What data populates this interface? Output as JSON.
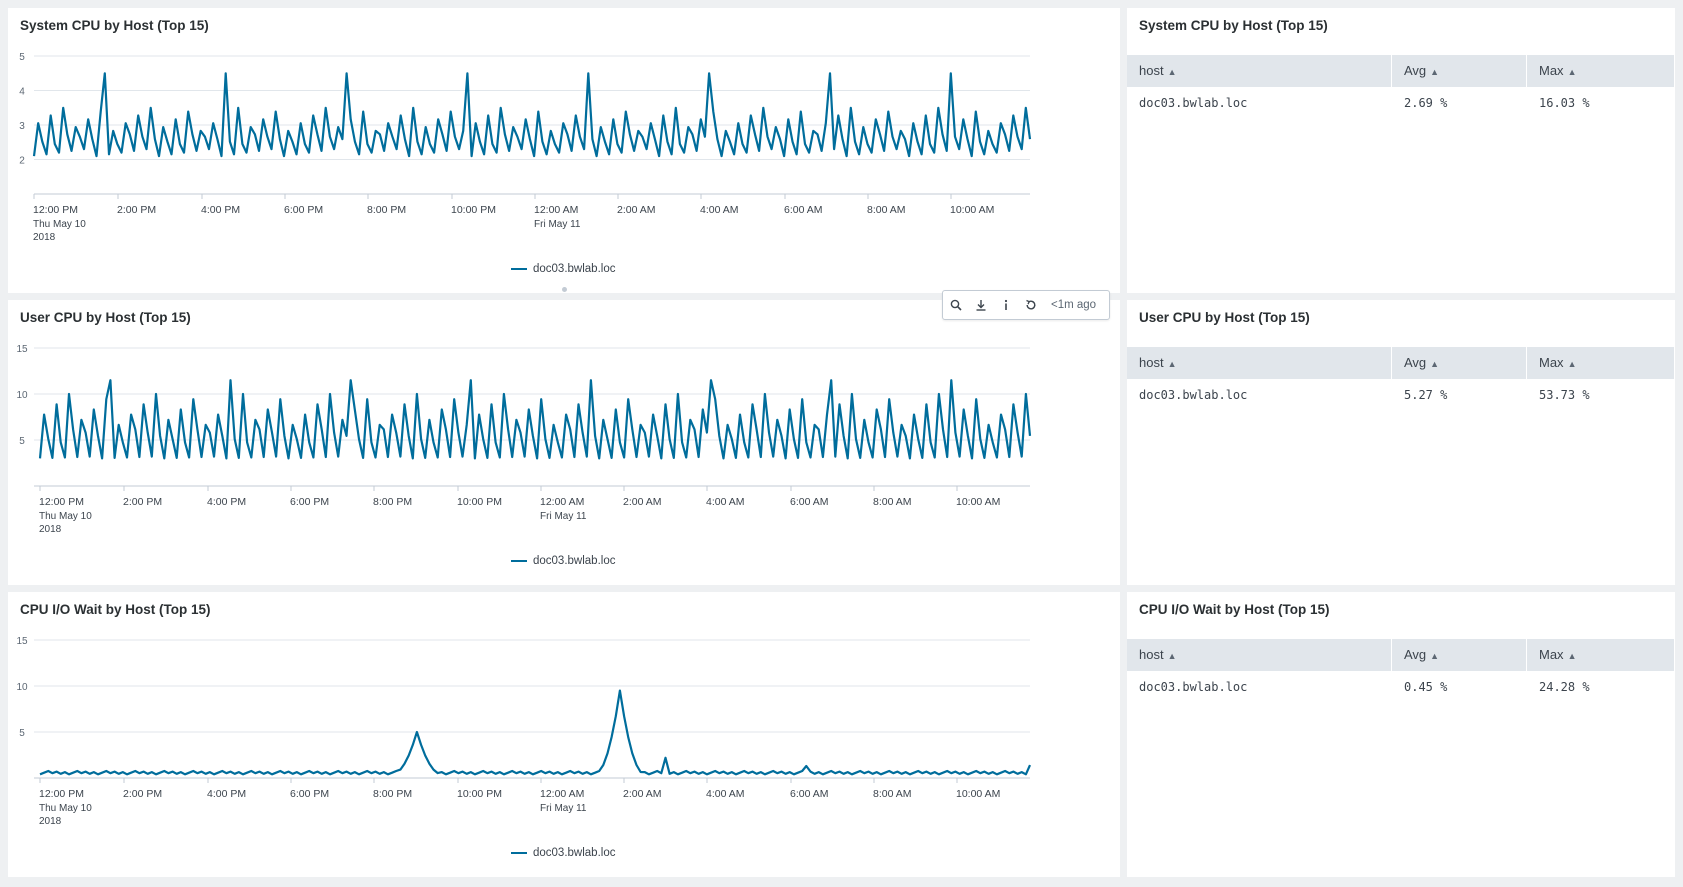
{
  "colors": {
    "series": "#006d9c",
    "grid": "#e1e6eb",
    "axis": "#c3cbd4",
    "table_header": "#e1e6eb"
  },
  "x_ticks": [
    {
      "label": "12:00 PM",
      "sub": [
        "Thu May 10",
        "2018"
      ]
    },
    {
      "label": "2:00 PM",
      "sub": []
    },
    {
      "label": "4:00 PM",
      "sub": []
    },
    {
      "label": "6:00 PM",
      "sub": []
    },
    {
      "label": "8:00 PM",
      "sub": []
    },
    {
      "label": "10:00 PM",
      "sub": []
    },
    {
      "label": "12:00 AM",
      "sub": [
        "Fri May 11"
      ]
    },
    {
      "label": "2:00 AM",
      "sub": []
    },
    {
      "label": "4:00 AM",
      "sub": []
    },
    {
      "label": "6:00 AM",
      "sub": []
    },
    {
      "label": "8:00 AM",
      "sub": []
    },
    {
      "label": "10:00 AM",
      "sub": []
    }
  ],
  "charts": [
    {
      "title": "System CPU by Host (Top 15)",
      "legend": "doc03.bwlab.loc",
      "chart_data": {
        "type": "line",
        "x": [
          "12:00 PM",
          "2:00 PM",
          "4:00 PM",
          "6:00 PM",
          "8:00 PM",
          "10:00 PM",
          "12:00 AM",
          "2:00 AM",
          "4:00 AM",
          "6:00 AM",
          "8:00 AM",
          "10:00 AM"
        ],
        "series": [
          {
            "name": "doc03.bwlab.loc",
            "pattern": "oscillating",
            "base_low": 2.1,
            "base_high": 3.5,
            "max": 4.5
          }
        ],
        "yticks": [
          2,
          3,
          4,
          5
        ],
        "ylim": [
          1,
          5
        ]
      }
    },
    {
      "title": "User CPU by Host (Top 15)",
      "legend": "doc03.bwlab.loc",
      "chart_data": {
        "type": "line",
        "x": [
          "12:00 PM",
          "2:00 PM",
          "4:00 PM",
          "6:00 PM",
          "8:00 PM",
          "10:00 PM",
          "12:00 AM",
          "2:00 AM",
          "4:00 AM",
          "6:00 AM",
          "8:00 AM",
          "10:00 AM"
        ],
        "series": [
          {
            "name": "doc03.bwlab.loc",
            "pattern": "oscillating",
            "base_low": 3,
            "base_high": 10,
            "max": 11.5
          }
        ],
        "yticks": [
          5,
          10,
          15
        ],
        "ylim": [
          0,
          15
        ]
      }
    },
    {
      "title": "CPU I/O Wait by Host (Top 15)",
      "legend": "doc03.bwlab.loc",
      "chart_data": {
        "type": "line",
        "x": [
          "12:00 PM",
          "2:00 PM",
          "4:00 PM",
          "6:00 PM",
          "8:00 PM",
          "10:00 PM",
          "12:00 AM",
          "2:00 AM",
          "4:00 AM",
          "6:00 AM",
          "8:00 AM",
          "10:00 AM"
        ],
        "series": [
          {
            "name": "doc03.bwlab.loc",
            "pattern": "flat-with-spikes",
            "baseline": 0.4,
            "peaks": [
              {
                "near": "8:45 PM",
                "value": 5
              },
              {
                "near": "1:45 AM",
                "value": 9.5
              }
            ]
          }
        ],
        "yticks": [
          5,
          10,
          15
        ],
        "ylim": [
          0,
          15
        ]
      }
    }
  ],
  "tables": [
    {
      "title": "System CPU by Host (Top 15)",
      "columns": [
        "host",
        "Avg",
        "Max"
      ],
      "rows": [
        [
          "doc03.bwlab.loc",
          "2.69 %",
          "16.03 %"
        ]
      ]
    },
    {
      "title": "User CPU by Host (Top 15)",
      "columns": [
        "host",
        "Avg",
        "Max"
      ],
      "rows": [
        [
          "doc03.bwlab.loc",
          "5.27 %",
          "53.73 %"
        ]
      ]
    },
    {
      "title": "CPU I/O Wait by Host (Top 15)",
      "columns": [
        "host",
        "Avg",
        "Max"
      ],
      "rows": [
        [
          "doc03.bwlab.loc",
          "0.45 %",
          "24.28 %"
        ]
      ]
    }
  ],
  "toolbar": {
    "icons": [
      "search-icon",
      "download-icon",
      "info-icon",
      "refresh-icon"
    ],
    "ago": "<1m ago"
  }
}
